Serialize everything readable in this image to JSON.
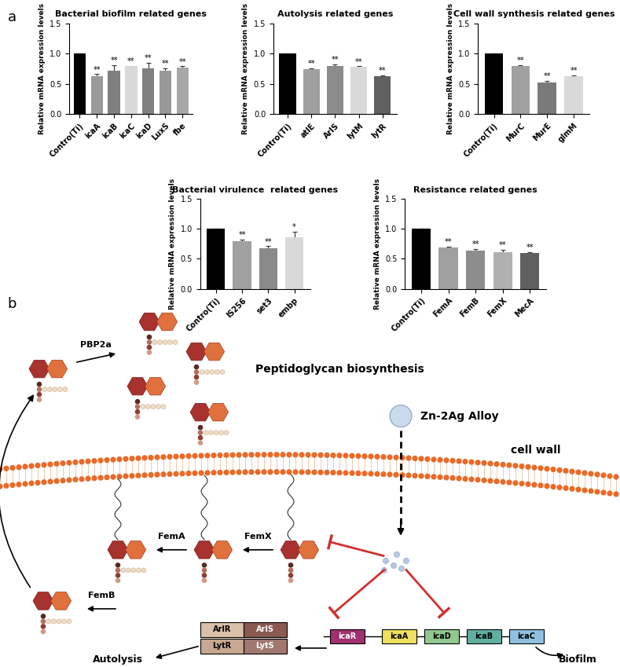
{
  "figure": {
    "panel_labels": [
      "a",
      "b"
    ]
  },
  "chart_data": [
    {
      "type": "bar",
      "title": "Bacterial biofilm related genes",
      "y_label": "Relative mRNA expression levels",
      "categories": [
        "Contro(Ti)",
        "icaA",
        "icaB",
        "icaC",
        "icaD",
        "LuxS",
        "fbe"
      ],
      "values": [
        1.0,
        0.63,
        0.72,
        0.79,
        0.75,
        0.72,
        0.77
      ],
      "errors": [
        0,
        0.03,
        0.09,
        0.01,
        0.1,
        0.04,
        0.02
      ],
      "annotations": [
        null,
        "**",
        "**",
        "**",
        "**",
        "**",
        "**"
      ],
      "colors": [
        "#000000",
        "#9a9a9a",
        "#7f7f7f",
        "#d9d9d9",
        "#808080",
        "#999999",
        "#a8a8a8"
      ],
      "ylim": [
        0,
        1.5
      ],
      "yticks": [
        {
          "value": 0,
          "label": "0.0"
        },
        {
          "value": 0.5,
          "label": "0.5"
        },
        {
          "value": 1.0,
          "label": "1.0"
        },
        {
          "value": 1.5,
          "label": "1.5"
        }
      ]
    },
    {
      "type": "bar",
      "title": "Autolysis related genes",
      "y_label": "Relative mRNA expression levels",
      "categories": [
        "Contro(Ti)",
        "atlE",
        "ArlS",
        "lytM",
        "lytR"
      ],
      "values": [
        1.0,
        0.74,
        0.8,
        0.78,
        0.63
      ],
      "errors": [
        0,
        0.02,
        0.02,
        0.01,
        0.01
      ],
      "annotations": [
        null,
        "**",
        "**",
        "**",
        "**"
      ],
      "colors": [
        "#000000",
        "#a0a0a0",
        "#8c8c8c",
        "#d9d9d9",
        "#606060"
      ],
      "ylim": [
        0,
        1.5
      ],
      "yticks": [
        {
          "value": 0,
          "label": "0.0"
        },
        {
          "value": 0.5,
          "label": "0.5"
        },
        {
          "value": 1.0,
          "label": "1.0"
        },
        {
          "value": 1.5,
          "label": "1.5"
        }
      ]
    },
    {
      "type": "bar",
      "title": "Cell wall synthesis related genes",
      "y_label": "Relative mRNA expression levels",
      "categories": [
        "Contro(Ti)",
        "MurC",
        "MurE",
        "glmM"
      ],
      "values": [
        1.0,
        0.79,
        0.52,
        0.62
      ],
      "errors": [
        0,
        0.02,
        0.03,
        0.02
      ],
      "annotations": [
        null,
        "**",
        "**",
        "**"
      ],
      "colors": [
        "#000000",
        "#a0a0a0",
        "#7a7a7a",
        "#d9d9d9"
      ],
      "ylim": [
        0,
        1.5
      ],
      "yticks": [
        {
          "value": 0,
          "label": "0.0"
        },
        {
          "value": 0.5,
          "label": "0.5"
        },
        {
          "value": 1.0,
          "label": "1.0"
        },
        {
          "value": 1.5,
          "label": "1.5"
        }
      ]
    },
    {
      "type": "bar",
      "title": "Bacterial virulence  related genes",
      "y_label": "Relative mRNA expression levels",
      "categories": [
        "Contro(Ti)",
        "IS256",
        "set3",
        "embp"
      ],
      "values": [
        1.0,
        0.79,
        0.68,
        0.86
      ],
      "errors": [
        0,
        0.03,
        0.03,
        0.09
      ],
      "annotations": [
        null,
        "**",
        "**",
        "*"
      ],
      "colors": [
        "#000000",
        "#a0a0a0",
        "#8a8a8a",
        "#d9d9d9"
      ],
      "ylim": [
        0,
        1.5
      ],
      "yticks": [
        {
          "value": 0,
          "label": "0.0"
        },
        {
          "value": 0.5,
          "label": "0.5"
        },
        {
          "value": 1.0,
          "label": "1.0"
        },
        {
          "value": 1.5,
          "label": "1.5"
        }
      ]
    },
    {
      "type": "bar",
      "title": "Resistance related genes",
      "y_label": "Relative mRNA expression levels",
      "categories": [
        "Contro(Ti)",
        "FemA",
        "FemB",
        "FemX",
        "MecA"
      ],
      "values": [
        1.0,
        0.69,
        0.64,
        0.61,
        0.6
      ],
      "errors": [
        0,
        0.01,
        0.02,
        0.04,
        0.01
      ],
      "annotations": [
        null,
        "**",
        "**",
        "**",
        "**"
      ],
      "colors": [
        "#000000",
        "#a0a0a0",
        "#8c8c8c",
        "#b0b0b0",
        "#606060"
      ],
      "ylim": [
        0,
        1.5
      ],
      "yticks": [
        {
          "value": 0,
          "label": "0.0"
        },
        {
          "value": 0.5,
          "label": "0.5"
        },
        {
          "value": 1.0,
          "label": "1.0"
        },
        {
          "value": 1.5,
          "label": "1.5"
        }
      ]
    }
  ],
  "diagram": {
    "pathway": "Peptidoglycan biosynthesis",
    "alloy": "Zn-2Ag Alloy",
    "membrane": "cell wall",
    "enzymes": [
      "PBP2a",
      "FemA",
      "FemX",
      "FemB"
    ],
    "two_component_genes": [
      [
        "ArlR",
        "ArlS"
      ],
      [
        "LytR",
        "LytS"
      ]
    ],
    "ica_operon": [
      "icaR",
      "icaA",
      "icaD",
      "icaB",
      "icaC"
    ],
    "outcomes": [
      "Autolysis",
      "Biofilm"
    ]
  }
}
